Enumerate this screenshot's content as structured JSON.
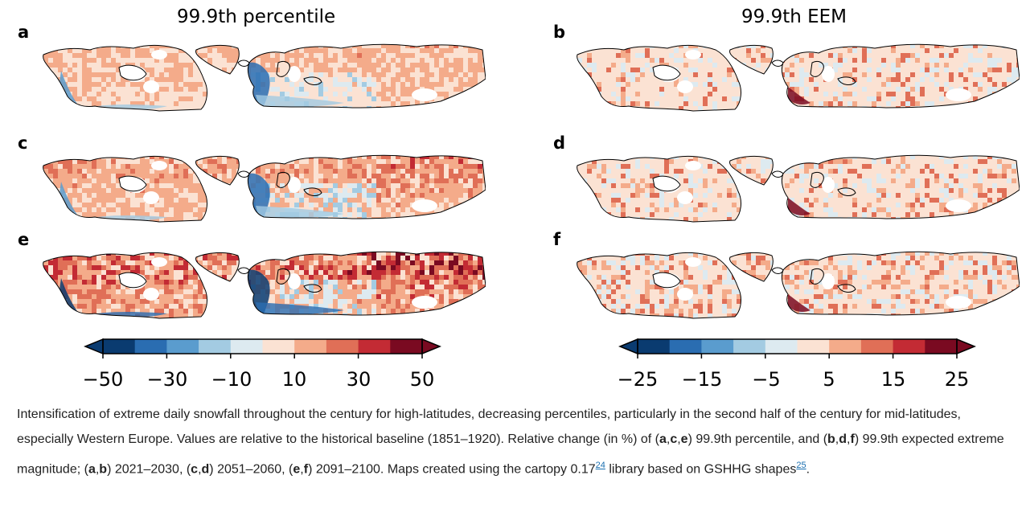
{
  "columns": [
    {
      "title": "99.9th percentile"
    },
    {
      "title": "99.9th EEM"
    }
  ],
  "panels": [
    {
      "letter": "a",
      "intensity": 0.35
    },
    {
      "letter": "b",
      "intensity": 0.25
    },
    {
      "letter": "c",
      "intensity": 0.6
    },
    {
      "letter": "d",
      "intensity": 0.35
    },
    {
      "letter": "e",
      "intensity": 1.0
    },
    {
      "letter": "f",
      "intensity": 0.55
    }
  ],
  "colorbars": [
    {
      "ticks": [
        "−50",
        "−30",
        "−10",
        "10",
        "30",
        "50"
      ]
    },
    {
      "ticks": [
        "−25",
        "−15",
        "−5",
        "5",
        "15",
        "25"
      ]
    }
  ],
  "colors": {
    "scale": [
      "#0a3b70",
      "#2a6db1",
      "#5a9cce",
      "#a3cbe2",
      "#ddeaf0",
      "#fbe2d3",
      "#f4ab8a",
      "#e06f57",
      "#c32b34",
      "#7a0a21"
    ],
    "land_neutral": "#ececec",
    "coast": "#000000"
  },
  "caption": {
    "t1": "Intensification of extreme daily snowfall throughout the century for high-latitudes, decreasing percentiles, particularly in the second half of the century for mid-latitudes, especially Western Europe. Values are relative to the historical baseline (1851–1920). Relative change (in %) of (",
    "b1": "a",
    "c1": ",",
    "b2": "c",
    "c2": ",",
    "b3": "e",
    "t2": ") 99.9th percentile, and (",
    "b4": "b",
    "c3": ",",
    "b5": "d",
    "c4": ",",
    "b6": "f",
    "t3": ") 99.9th expected extreme magnitude; (",
    "b7": "a",
    "c5": ",",
    "b8": "b",
    "t4": ") 2021–2030, (",
    "b9": "c",
    "c6": ",",
    "b10": "d",
    "t5": ") 2051–2060, (",
    "b11": "e",
    "c7": ",",
    "b12": "f",
    "t6": ") 2091–2100. Maps created using the cartopy 0.17",
    "ref1": "24",
    "t7": " library based on GSHHG shapes",
    "ref2": "25",
    "t8": "."
  }
}
